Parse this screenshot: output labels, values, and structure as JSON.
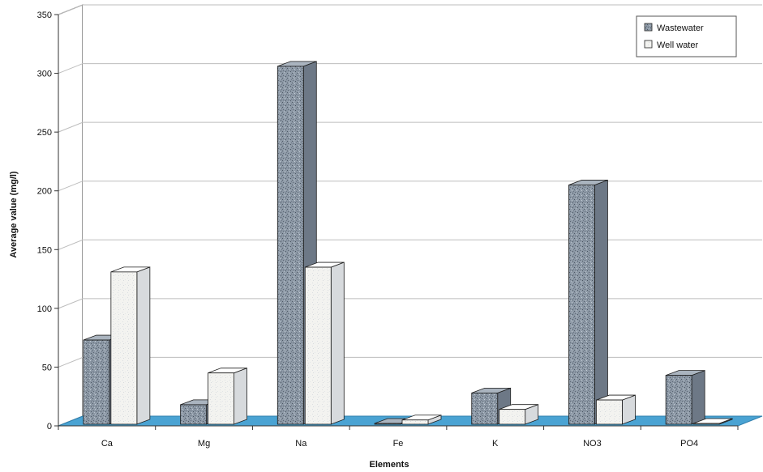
{
  "chart_data": {
    "type": "bar",
    "style": "3d-clustered-columns",
    "title": "",
    "xlabel": "Elements",
    "ylabel": "Average value (mg/l)",
    "categories": [
      "Ca",
      "Mg",
      "Na",
      "Fe",
      "K",
      "NO3",
      "PO4"
    ],
    "series": [
      {
        "name": "Wastewater",
        "values": [
          73,
          18,
          306,
          1,
          28,
          205,
          43
        ]
      },
      {
        "name": "Well water",
        "values": [
          131,
          45,
          135,
          5,
          14,
          22,
          1
        ]
      }
    ],
    "ylim": [
      0,
      350
    ],
    "yticks": [
      0,
      50,
      100,
      150,
      200,
      250,
      300,
      350
    ],
    "grid": true,
    "legend_position": "top-right",
    "colors": {
      "wastewater": "#8d99a6",
      "well_water": "#f3f3f0",
      "floor": "#4aa3d3",
      "grid": "#bdbdbd",
      "axis": "#333333"
    }
  }
}
